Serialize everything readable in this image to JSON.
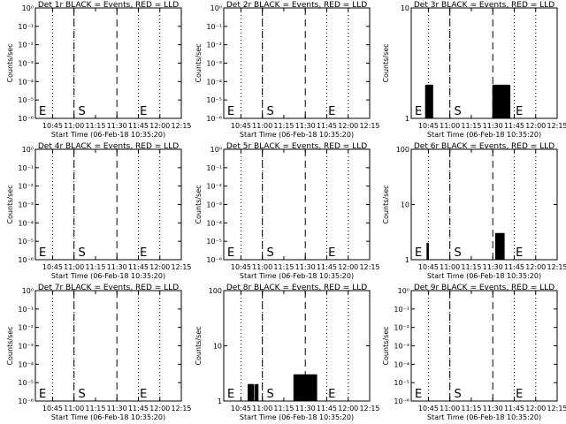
{
  "chart_data": [
    {
      "type": "line",
      "title": "Det 1r BLACK = Events, RED = LLD",
      "xlabel": "Start Time (06-Feb-18 10:35:20)",
      "ylabel": "Counts/sec",
      "yscale": "log",
      "ytick_labels": [
        "10⁰",
        "10⁻¹",
        "10⁻²",
        "10⁻³",
        "10⁻⁴",
        "10⁻⁵",
        "10⁻⁶"
      ],
      "ytick_values": [
        1,
        0.1,
        0.01,
        0.001,
        0.0001,
        1e-05,
        1e-06
      ],
      "xlim_min": [
        -2,
        100
      ],
      "xtick_labels": [
        "10:45",
        "11:00",
        "11:15",
        "11:30",
        "11:45",
        "12:00",
        "12:15"
      ],
      "xtick_values": [
        10,
        25,
        40,
        55,
        70,
        85,
        100
      ],
      "dotted_lines": [
        10,
        25,
        70,
        85,
        100
      ],
      "dashed_lines": [
        25,
        55
      ],
      "markers": [
        {
          "text": "E",
          "x": 0.5
        },
        {
          "text": "S",
          "x": 28
        },
        {
          "text": "E",
          "x": 71
        }
      ],
      "series": [
        {
          "color": "#000000",
          "bursts": []
        }
      ]
    },
    {
      "type": "line",
      "title": "Det 2r BLACK = Events, RED = LLD",
      "xlabel": "Start Time (06-Feb-18 10:35:20)",
      "ylabel": "Counts/sec",
      "yscale": "log",
      "ytick_labels": [
        "10⁰",
        "10⁻¹",
        "10⁻²",
        "10⁻³",
        "10⁻⁴",
        "10⁻⁵",
        "10⁻⁶"
      ],
      "ytick_values": [
        1,
        0.1,
        0.01,
        0.001,
        0.0001,
        1e-05,
        1e-06
      ],
      "xlim_min": [
        -2,
        100
      ],
      "xtick_labels": [
        "10:45",
        "11:00",
        "11:15",
        "11:30",
        "11:45",
        "12:00",
        "12:15"
      ],
      "xtick_values": [
        10,
        25,
        40,
        55,
        70,
        85,
        100
      ],
      "dotted_lines": [
        10,
        25,
        70,
        85,
        100
      ],
      "dashed_lines": [
        25,
        55
      ],
      "markers": [
        {
          "text": "E",
          "x": 0.5
        },
        {
          "text": "S",
          "x": 28
        },
        {
          "text": "E",
          "x": 71
        }
      ],
      "series": [
        {
          "color": "#000000",
          "bursts": []
        }
      ]
    },
    {
      "type": "line",
      "title": "Det 3r BLACK = Events, RED = LLD",
      "xlabel": "Start Time (06-Feb-18 10:35:20)",
      "ylabel": "Counts/sec",
      "yscale": "log",
      "ytick_labels": [
        "10",
        "1"
      ],
      "ytick_values": [
        10,
        1
      ],
      "xlim_min": [
        -2,
        100
      ],
      "xtick_labels": [
        "10:45",
        "11:00",
        "11:15",
        "11:30",
        "11:45",
        "12:00",
        "12:15"
      ],
      "xtick_values": [
        10,
        25,
        40,
        55,
        70,
        85,
        100
      ],
      "dotted_lines": [
        10,
        25,
        70,
        85,
        100
      ],
      "dashed_lines": [
        25,
        55
      ],
      "markers": [
        {
          "text": "E",
          "x": 0.5
        },
        {
          "text": "S",
          "x": 28
        },
        {
          "text": "E",
          "x": 71
        }
      ],
      "series": [
        {
          "color": "#000000",
          "bursts": [
            {
              "start": 8,
              "end": 13,
              "level": 2
            },
            {
              "start": 55,
              "end": 67,
              "level": 2
            }
          ]
        }
      ]
    },
    {
      "type": "line",
      "title": "Det 4r BLACK = Events, RED = LLD",
      "xlabel": "Start Time (06-Feb-18 10:35:20)",
      "ylabel": "Counts/sec",
      "yscale": "log",
      "ytick_labels": [
        "10⁰",
        "10⁻¹",
        "10⁻²",
        "10⁻³",
        "10⁻⁴",
        "10⁻⁵",
        "10⁻⁶"
      ],
      "ytick_values": [
        1,
        0.1,
        0.01,
        0.001,
        0.0001,
        1e-05,
        1e-06
      ],
      "xlim_min": [
        -2,
        100
      ],
      "xtick_labels": [
        "10:45",
        "11:00",
        "11:15",
        "11:30",
        "11:45",
        "12:00",
        "12:15"
      ],
      "xtick_values": [
        10,
        25,
        40,
        55,
        70,
        85,
        100
      ],
      "dotted_lines": [
        10,
        25,
        70,
        85,
        100
      ],
      "dashed_lines": [
        25,
        55
      ],
      "markers": [
        {
          "text": "E",
          "x": 0.5
        },
        {
          "text": "S",
          "x": 28
        },
        {
          "text": "E",
          "x": 71
        }
      ],
      "series": [
        {
          "color": "#000000",
          "bursts": []
        }
      ]
    },
    {
      "type": "line",
      "title": "Det 5r BLACK = Events, RED = LLD",
      "xlabel": "Start Time (06-Feb-18 10:35:20)",
      "ylabel": "Counts/sec",
      "yscale": "log",
      "ytick_labels": [
        "10⁰",
        "10⁻¹",
        "10⁻²",
        "10⁻³",
        "10⁻⁴",
        "10⁻⁵",
        "10⁻⁶"
      ],
      "ytick_values": [
        1,
        0.1,
        0.01,
        0.001,
        0.0001,
        1e-05,
        1e-06
      ],
      "xlim_min": [
        -2,
        100
      ],
      "xtick_labels": [
        "10:45",
        "11:00",
        "11:15",
        "11:30",
        "11:45",
        "12:00",
        "12:15"
      ],
      "xtick_values": [
        10,
        25,
        40,
        55,
        70,
        85,
        100
      ],
      "dotted_lines": [
        10,
        25,
        70,
        85,
        100
      ],
      "dashed_lines": [
        25,
        55
      ],
      "markers": [
        {
          "text": "E",
          "x": 0.5
        },
        {
          "text": "S",
          "x": 28
        },
        {
          "text": "E",
          "x": 71
        }
      ],
      "series": [
        {
          "color": "#000000",
          "bursts": []
        }
      ]
    },
    {
      "type": "line",
      "title": "Det 6r BLACK = Events, RED = LLD",
      "xlabel": "Start Time (06-Feb-18 10:35:20)",
      "ylabel": "Counts/sec",
      "yscale": "log",
      "ytick_labels": [
        "100",
        "10",
        "1"
      ],
      "ytick_values": [
        100,
        10,
        1
      ],
      "xlim_min": [
        -2,
        100
      ],
      "xtick_labels": [
        "10:45",
        "11:00",
        "11:15",
        "11:30",
        "11:45",
        "12:00",
        "12:15"
      ],
      "xtick_values": [
        10,
        25,
        40,
        55,
        70,
        85,
        100
      ],
      "dotted_lines": [
        10,
        25,
        70,
        85,
        100
      ],
      "dashed_lines": [
        25,
        55
      ],
      "markers": [
        {
          "text": "E",
          "x": 0.5
        },
        {
          "text": "S",
          "x": 28
        },
        {
          "text": "E",
          "x": 71
        }
      ],
      "series": [
        {
          "color": "#000000",
          "bursts": [
            {
              "start": 9,
              "end": 10,
              "level": 2
            },
            {
              "start": 57,
              "end": 63,
              "level": 3
            }
          ]
        }
      ]
    },
    {
      "type": "line",
      "title": "Det 7r BLACK = Events, RED = LLD",
      "xlabel": "Start Time (06-Feb-18 10:35:20)",
      "ylabel": "Counts/sec",
      "yscale": "log",
      "ytick_labels": [
        "10⁰",
        "10⁻¹",
        "10⁻²",
        "10⁻³",
        "10⁻⁴",
        "10⁻⁵",
        "10⁻⁶"
      ],
      "ytick_values": [
        1,
        0.1,
        0.01,
        0.001,
        0.0001,
        1e-05,
        1e-06
      ],
      "xlim_min": [
        -2,
        100
      ],
      "xtick_labels": [
        "10:45",
        "11:00",
        "11:15",
        "11:30",
        "11:45",
        "12:00",
        "12:15"
      ],
      "xtick_values": [
        10,
        25,
        40,
        55,
        70,
        85,
        100
      ],
      "dotted_lines": [
        10,
        25,
        70,
        85,
        100
      ],
      "dashed_lines": [
        25,
        55
      ],
      "markers": [
        {
          "text": "E",
          "x": 0.5
        },
        {
          "text": "S",
          "x": 28
        },
        {
          "text": "E",
          "x": 71
        }
      ],
      "series": [
        {
          "color": "#000000",
          "bursts": []
        }
      ]
    },
    {
      "type": "line",
      "title": "Det 8r BLACK = Events, RED = LLD",
      "xlabel": "Start Time (06-Feb-18 10:35:20)",
      "ylabel": "Counts/sec",
      "yscale": "log",
      "ytick_labels": [
        "100",
        "10",
        "1"
      ],
      "ytick_values": [
        100,
        10,
        1
      ],
      "xlim_min": [
        -2,
        100
      ],
      "xtick_labels": [
        "10:45",
        "11:00",
        "11:15",
        "11:30",
        "11:45",
        "12:00",
        "12:15"
      ],
      "xtick_values": [
        10,
        25,
        40,
        55,
        70,
        85,
        100
      ],
      "dotted_lines": [
        10,
        25,
        70,
        85,
        100
      ],
      "dashed_lines": [
        25,
        55
      ],
      "markers": [
        {
          "text": "E",
          "x": 0.5
        },
        {
          "text": "S",
          "x": 28
        },
        {
          "text": "E",
          "x": 71
        }
      ],
      "series": [
        {
          "color": "#000000",
          "bursts": [
            {
              "start": 15,
              "end": 19,
              "level": 2
            },
            {
              "start": 20,
              "end": 22,
              "level": 2
            },
            {
              "start": 47,
              "end": 63,
              "level": 3
            }
          ]
        }
      ]
    },
    {
      "type": "line",
      "title": "Det 9r BLACK = Events, RED = LLD",
      "xlabel": "Start Time (06-Feb-18 10:35:20)",
      "ylabel": "Counts/sec",
      "yscale": "log",
      "ytick_labels": [
        "10⁰",
        "10⁻¹",
        "10⁻²",
        "10⁻³",
        "10⁻⁴",
        "10⁻⁵",
        "10⁻⁶"
      ],
      "ytick_values": [
        1,
        0.1,
        0.01,
        0.001,
        0.0001,
        1e-05,
        1e-06
      ],
      "xlim_min": [
        -2,
        100
      ],
      "xtick_labels": [
        "10:45",
        "11:00",
        "11:15",
        "11:30",
        "11:45",
        "12:00",
        "12:15"
      ],
      "xtick_values": [
        10,
        25,
        40,
        55,
        70,
        85,
        100
      ],
      "dotted_lines": [
        10,
        25,
        70,
        85,
        100
      ],
      "dashed_lines": [
        25,
        55
      ],
      "markers": [
        {
          "text": "E",
          "x": 0.5
        },
        {
          "text": "S",
          "x": 28
        },
        {
          "text": "E",
          "x": 71
        }
      ],
      "series": [
        {
          "color": "#000000",
          "bursts": []
        }
      ]
    }
  ]
}
